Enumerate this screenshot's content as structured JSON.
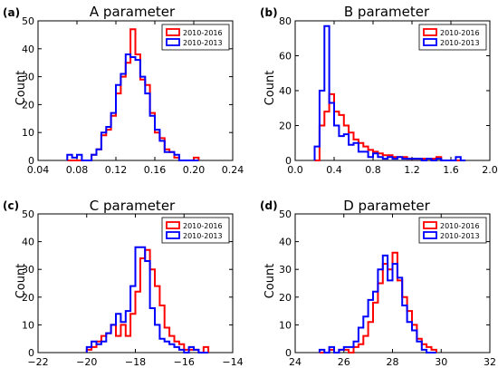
{
  "chart_data": [
    {
      "type": "histogram",
      "panel_label": "(a)",
      "title": "A parameter",
      "ylabel": "Count",
      "xlim": [
        0.04,
        0.24
      ],
      "ylim": [
        0,
        50
      ],
      "xticks": [
        "0.04",
        "0.08",
        "0.12",
        "0.16",
        "0.20",
        "0.24"
      ],
      "yticks": [
        "0",
        "10",
        "20",
        "30",
        "40",
        "50"
      ],
      "legend_position": "upper right",
      "grid": false,
      "bin_edges": [
        0.07,
        0.075,
        0.08,
        0.085,
        0.09,
        0.095,
        0.1,
        0.105,
        0.11,
        0.115,
        0.12,
        0.125,
        0.13,
        0.135,
        0.14,
        0.145,
        0.15,
        0.155,
        0.16,
        0.165,
        0.17,
        0.175,
        0.18,
        0.185,
        0.19,
        0.195,
        0.2,
        0.205
      ],
      "series": [
        {
          "name": "2010-2016",
          "color": "#ff0000",
          "counts": [
            0,
            0,
            0,
            0,
            0,
            2,
            4,
            9,
            11,
            16,
            24,
            30,
            35,
            47,
            38,
            29,
            27,
            17,
            10,
            8,
            4,
            3,
            1,
            0,
            0,
            0,
            1
          ]
        },
        {
          "name": "2010-2013",
          "color": "#0000ff",
          "counts": [
            2,
            1,
            2,
            0,
            0,
            2,
            4,
            10,
            12,
            17,
            27,
            31,
            38,
            37,
            36,
            30,
            24,
            16,
            11,
            7,
            3,
            3,
            2,
            0,
            0,
            0,
            0
          ]
        }
      ]
    },
    {
      "type": "histogram",
      "panel_label": "(b)",
      "title": "B parameter",
      "ylabel": "Count",
      "xlim": [
        0.0,
        2.0
      ],
      "ylim": [
        0,
        80
      ],
      "xticks": [
        "0.0",
        "0.4",
        "0.8",
        "1.2",
        "1.6",
        "2.0"
      ],
      "yticks": [
        "0",
        "20",
        "40",
        "60",
        "80"
      ],
      "legend_position": "upper right",
      "grid": false,
      "bin_edges": [
        0.2,
        0.25,
        0.3,
        0.35,
        0.4,
        0.45,
        0.5,
        0.55,
        0.6,
        0.65,
        0.7,
        0.75,
        0.8,
        0.85,
        0.9,
        0.95,
        1.0,
        1.05,
        1.1,
        1.15,
        1.2,
        1.25,
        1.3,
        1.35,
        1.4,
        1.45,
        1.5,
        1.55,
        1.6,
        1.65,
        1.7,
        1.75
      ],
      "series": [
        {
          "name": "2010-2016",
          "color": "#ff0000",
          "counts": [
            0,
            20,
            28,
            38,
            28,
            26,
            20,
            16,
            12,
            10,
            8,
            6,
            5,
            4,
            3,
            3,
            2,
            2,
            2,
            1,
            1,
            1,
            1,
            1,
            1,
            2,
            0,
            0,
            0,
            0,
            0
          ]
        },
        {
          "name": "2010-2013",
          "color": "#0000ff",
          "counts": [
            8,
            40,
            77,
            33,
            20,
            14,
            15,
            9,
            10,
            5,
            5,
            2,
            4,
            2,
            1,
            2,
            1,
            2,
            1,
            1,
            1,
            1,
            0,
            1,
            0,
            1,
            0,
            0,
            0,
            2,
            0
          ]
        }
      ]
    },
    {
      "type": "histogram",
      "panel_label": "(c)",
      "title": "C parameter",
      "ylabel": "Count",
      "xlim": [
        -22,
        -14
      ],
      "ylim": [
        0,
        50
      ],
      "xticks": [
        "−22",
        "−20",
        "−18",
        "−16",
        "−14"
      ],
      "yticks": [
        "0",
        "10",
        "20",
        "30",
        "40",
        "50"
      ],
      "legend_position": "upper right",
      "grid": false,
      "bin_edges": [
        -20.0,
        -19.8,
        -19.6,
        -19.4,
        -19.2,
        -19.0,
        -18.8,
        -18.6,
        -18.4,
        -18.2,
        -18.0,
        -17.8,
        -17.6,
        -17.4,
        -17.2,
        -17.0,
        -16.8,
        -16.6,
        -16.4,
        -16.2,
        -16.0,
        -15.8,
        -15.6,
        -15.4,
        -15.2,
        -15.0
      ],
      "series": [
        {
          "name": "2010-2016",
          "color": "#ff0000",
          "counts": [
            1,
            2,
            4,
            6,
            7,
            10,
            6,
            10,
            6,
            14,
            22,
            34,
            37,
            30,
            24,
            17,
            9,
            6,
            4,
            3,
            1,
            1,
            1,
            0,
            2
          ]
        },
        {
          "name": "2010-2013",
          "color": "#0000ff",
          "counts": [
            2,
            4,
            3,
            4,
            7,
            10,
            14,
            11,
            15,
            24,
            38,
            38,
            33,
            16,
            10,
            5,
            4,
            3,
            2,
            1,
            0,
            2,
            1,
            0,
            0
          ]
        }
      ]
    },
    {
      "type": "histogram",
      "panel_label": "(d)",
      "title": "D parameter",
      "ylabel": "Count",
      "xlim": [
        24,
        32
      ],
      "ylim": [
        0,
        50
      ],
      "xticks": [
        "24",
        "26",
        "28",
        "30",
        "32"
      ],
      "yticks": [
        "0",
        "10",
        "20",
        "30",
        "40",
        "50"
      ],
      "legend_position": "upper right",
      "grid": false,
      "bin_edges": [
        25.0,
        25.2,
        25.4,
        25.6,
        25.8,
        26.0,
        26.2,
        26.4,
        26.6,
        26.8,
        27.0,
        27.2,
        27.4,
        27.6,
        27.8,
        28.0,
        28.2,
        28.4,
        28.6,
        28.8,
        29.0,
        29.2,
        29.4,
        29.6,
        29.8
      ],
      "series": [
        {
          "name": "2010-2016",
          "color": "#ff0000",
          "counts": [
            0,
            0,
            1,
            0,
            1,
            1,
            0,
            2,
            3,
            6,
            11,
            18,
            25,
            32,
            30,
            36,
            26,
            20,
            15,
            10,
            5,
            3,
            2,
            1
          ]
        },
        {
          "name": "2010-2013",
          "color": "#0000ff",
          "counts": [
            1,
            0,
            2,
            0,
            1,
            2,
            2,
            4,
            9,
            13,
            19,
            22,
            30,
            35,
            26,
            32,
            27,
            17,
            11,
            8,
            4,
            1,
            0,
            0
          ]
        }
      ]
    }
  ]
}
